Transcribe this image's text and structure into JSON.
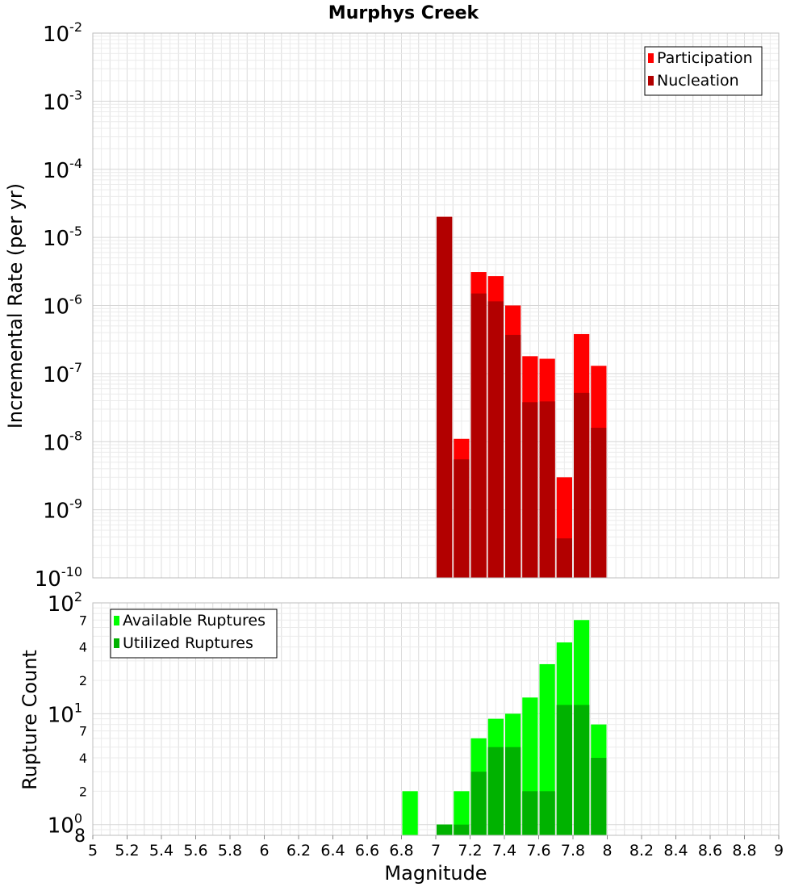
{
  "chart_data": [
    {
      "type": "bar",
      "title": "Murphys Creek",
      "xlabel": "",
      "ylabel": "Incremental Rate (per yr)",
      "y_scale": "log",
      "ylim": [
        1e-10,
        0.01
      ],
      "xlim": [
        5,
        9
      ],
      "grid": true,
      "legend_placement": "top-right",
      "bin_width": 0.1,
      "bin_centers": [
        7.05,
        7.15,
        7.25,
        7.35,
        7.45,
        7.55,
        7.65,
        7.75,
        7.85,
        7.95
      ],
      "series": [
        {
          "name": "Participation",
          "color": "#ff0000",
          "values": [
            2e-05,
            1.1e-08,
            3.1e-06,
            2.7e-06,
            1e-06,
            1.8e-07,
            1.65e-07,
            3e-09,
            3.8e-07,
            1.3e-07
          ]
        },
        {
          "name": "Nucleation",
          "color": "#b20000",
          "values": [
            2e-05,
            5.5e-09,
            1.5e-06,
            1.15e-06,
            3.7e-07,
            3.8e-08,
            3.9e-08,
            3.8e-10,
            5.2e-08,
            1.6e-08
          ]
        }
      ],
      "y_ticks": [
        {
          "base": "10",
          "exp": "-2"
        },
        {
          "base": "10",
          "exp": "-3"
        },
        {
          "base": "10",
          "exp": "-4"
        },
        {
          "base": "10",
          "exp": "-5"
        },
        {
          "base": "10",
          "exp": "-6"
        },
        {
          "base": "10",
          "exp": "-7"
        },
        {
          "base": "10",
          "exp": "-8"
        },
        {
          "base": "10",
          "exp": "-9"
        },
        {
          "base": "10",
          "exp": "-10"
        }
      ]
    },
    {
      "type": "bar",
      "title": "",
      "xlabel": "Magnitude",
      "ylabel": "Rupture Count",
      "y_scale": "log",
      "ylim": [
        0.8,
        100
      ],
      "xlim": [
        5,
        9
      ],
      "grid": true,
      "legend_placement": "top-left",
      "bin_width": 0.1,
      "bin_centers": [
        6.85,
        7.05,
        7.15,
        7.25,
        7.35,
        7.45,
        7.55,
        7.65,
        7.75,
        7.85,
        7.95
      ],
      "series": [
        {
          "name": "Available Ruptures",
          "color": "#00ff00",
          "values": [
            2,
            1,
            2,
            6,
            9,
            10,
            14,
            28,
            44,
            70,
            8
          ]
        },
        {
          "name": "Utilized Ruptures",
          "color": "#00b200",
          "values": [
            0,
            1,
            1,
            3,
            5,
            5,
            2,
            2,
            12,
            12,
            4
          ]
        }
      ],
      "y_ticks": [
        {
          "value": 100,
          "base": "10",
          "exp": "2"
        },
        {
          "value": 70,
          "label": "7"
        },
        {
          "value": 40,
          "label": "4"
        },
        {
          "value": 20,
          "label": "2"
        },
        {
          "value": 10,
          "base": "10",
          "exp": "1"
        },
        {
          "value": 7,
          "label": "7"
        },
        {
          "value": 4,
          "label": "4"
        },
        {
          "value": 2,
          "label": "2"
        },
        {
          "value": 1,
          "base": "10",
          "exp": "0"
        },
        {
          "value": 0.8,
          "label": "8"
        }
      ],
      "x_ticks": [
        "5",
        "5.2",
        "5.4",
        "5.6",
        "5.8",
        "6",
        "6.2",
        "6.4",
        "6.6",
        "6.8",
        "7",
        "7.2",
        "7.4",
        "7.6",
        "7.8",
        "8",
        "8.2",
        "8.4",
        "8.6",
        "8.8",
        "9"
      ]
    }
  ]
}
